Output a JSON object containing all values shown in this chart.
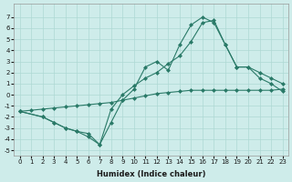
{
  "xlabel": "Humidex (Indice chaleur)",
  "bg_color": "#ceecea",
  "grid_color": "#aed8d4",
  "line_color": "#2a7a68",
  "xlim": [
    -0.5,
    23.5
  ],
  "ylim": [
    -5.5,
    8.2
  ],
  "xticks": [
    0,
    1,
    2,
    3,
    4,
    5,
    6,
    7,
    8,
    9,
    10,
    11,
    12,
    13,
    14,
    15,
    16,
    17,
    18,
    19,
    20,
    21,
    22,
    23
  ],
  "yticks": [
    -5,
    -4,
    -3,
    -2,
    -1,
    0,
    1,
    2,
    3,
    4,
    5,
    6,
    7
  ],
  "line1_x": [
    0,
    1,
    2,
    3,
    4,
    5,
    6,
    7,
    8,
    9,
    10,
    11,
    12,
    13,
    14,
    15,
    16,
    17,
    18,
    19,
    20,
    21,
    22,
    23
  ],
  "line1_y": [
    -1.5,
    -1.4,
    -1.3,
    -1.2,
    -1.1,
    -1.0,
    -0.9,
    -0.8,
    -0.7,
    -0.5,
    -0.3,
    -0.1,
    0.1,
    0.2,
    0.3,
    0.4,
    0.4,
    0.4,
    0.4,
    0.4,
    0.4,
    0.4,
    0.4,
    0.5
  ],
  "line2_x": [
    0,
    2,
    3,
    4,
    5,
    6,
    7,
    8,
    9,
    10,
    11,
    12,
    13,
    14,
    15,
    16,
    17,
    18,
    19,
    20,
    21,
    22,
    23
  ],
  "line2_y": [
    -1.5,
    -2.0,
    -2.5,
    -3.0,
    -3.3,
    -3.8,
    -4.5,
    -2.5,
    -0.5,
    0.5,
    2.5,
    3.0,
    2.2,
    4.5,
    6.3,
    7.0,
    6.5,
    4.5,
    2.5,
    2.5,
    2.0,
    1.5,
    1.0
  ],
  "line3_x": [
    0,
    2,
    3,
    4,
    5,
    6,
    7,
    8,
    9,
    10,
    11,
    12,
    13,
    14,
    15,
    16,
    17,
    18,
    19,
    20,
    21,
    22,
    23
  ],
  "line3_y": [
    -1.5,
    -2.0,
    -2.5,
    -3.0,
    -3.3,
    -3.5,
    -4.5,
    -1.3,
    0.0,
    0.8,
    1.5,
    2.0,
    2.8,
    3.5,
    4.8,
    6.5,
    6.7,
    4.5,
    2.5,
    2.5,
    1.5,
    1.0,
    0.3
  ]
}
